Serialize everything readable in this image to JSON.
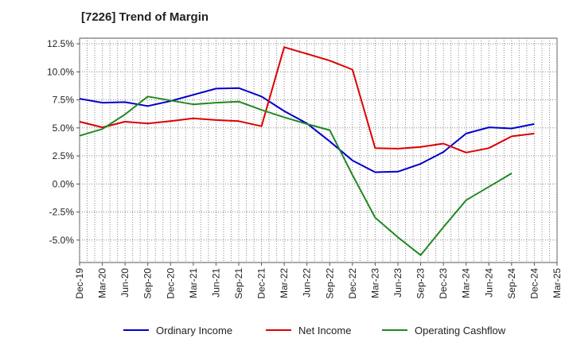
{
  "title": "[7226]  Trend of Margin",
  "colors": {
    "ordinary": "#0000cc",
    "net": "#dd0000",
    "cashflow": "#228822",
    "grid": "#888888",
    "axis": "#555555"
  },
  "chart_data": {
    "type": "line",
    "title": "[7226]  Trend of Margin",
    "xlabel": "",
    "ylabel": "",
    "x": [
      "Dec-19",
      "Mar-20",
      "Jun-20",
      "Sep-20",
      "Dec-20",
      "Mar-21",
      "Jun-21",
      "Sep-21",
      "Dec-21",
      "Mar-22",
      "Jun-22",
      "Sep-22",
      "Dec-22",
      "Mar-23",
      "Jun-23",
      "Sep-23",
      "Dec-23",
      "Mar-24",
      "Jun-24",
      "Sep-24",
      "Dec-24",
      "Mar-25"
    ],
    "y_ticks": [
      "12.5%",
      "10.0%",
      "7.5%",
      "5.0%",
      "2.5%",
      "0.0%",
      "-2.5%",
      "-5.0%"
    ],
    "y_tick_values": [
      12.5,
      10.0,
      7.5,
      5.0,
      2.5,
      0.0,
      -2.5,
      -5.0
    ],
    "ylim": [
      -7.0,
      13.0
    ],
    "grid": true,
    "legend_position": "bottom",
    "series": [
      {
        "name": "Ordinary Income",
        "color": "#0000cc",
        "values": [
          7.6,
          7.25,
          7.3,
          6.95,
          7.4,
          7.95,
          8.5,
          8.55,
          7.8,
          6.5,
          5.4,
          3.8,
          2.1,
          1.05,
          1.1,
          1.8,
          2.85,
          4.5,
          5.05,
          4.95,
          5.35,
          null
        ]
      },
      {
        "name": "Net Income",
        "color": "#dd0000",
        "values": [
          5.55,
          5.05,
          5.55,
          5.4,
          5.6,
          5.85,
          5.7,
          5.6,
          5.15,
          12.2,
          11.6,
          11.0,
          10.2,
          3.2,
          3.15,
          3.3,
          3.6,
          2.8,
          3.2,
          4.25,
          4.5,
          null
        ]
      },
      {
        "name": "Operating Cashflow",
        "color": "#228822",
        "values": [
          4.3,
          4.9,
          6.2,
          7.8,
          7.45,
          7.1,
          7.25,
          7.35,
          6.6,
          5.95,
          5.35,
          4.8,
          0.8,
          -3.0,
          -4.75,
          -6.35,
          -3.85,
          -1.45,
          -0.25,
          0.95,
          null,
          null
        ]
      }
    ]
  }
}
